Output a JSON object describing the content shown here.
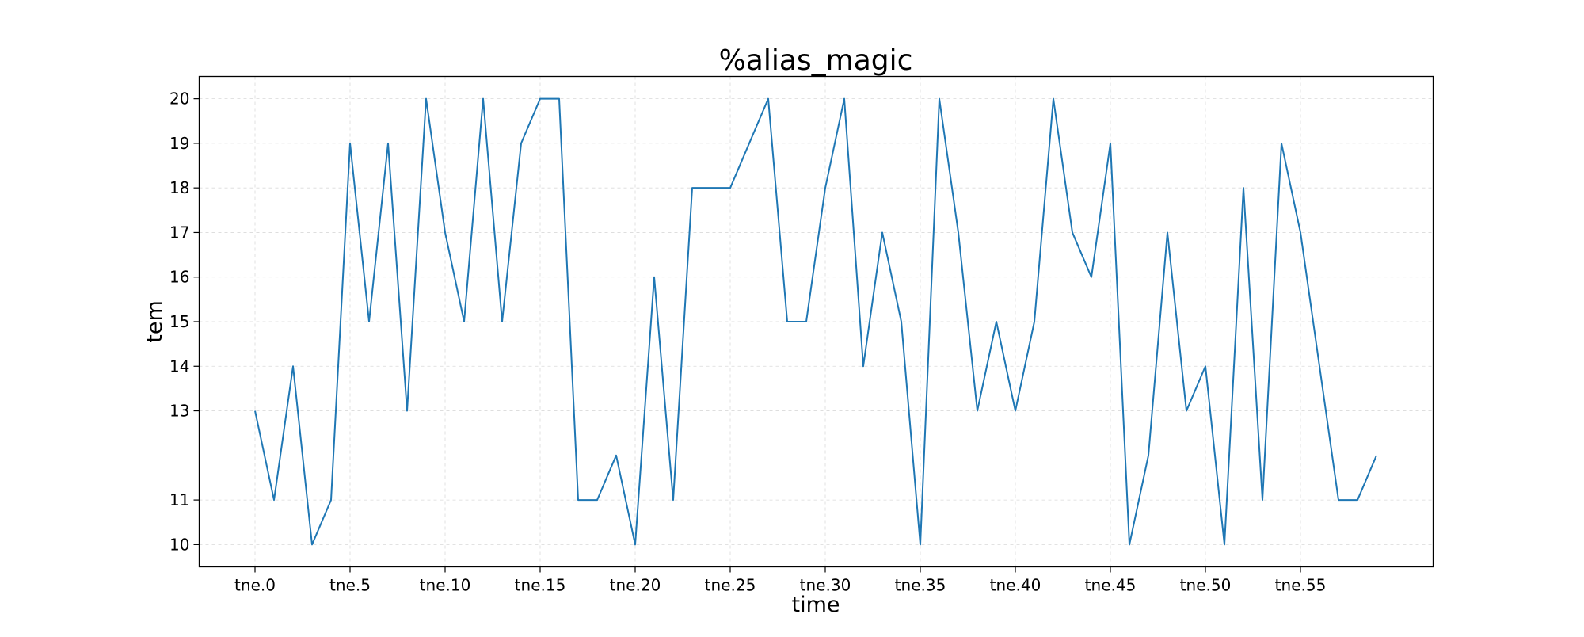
{
  "chart_data": {
    "type": "line",
    "title": "%alias_magic",
    "xlabel": "time",
    "ylabel": "tem",
    "x_tick_labels": [
      "tne.0",
      "tne.5",
      "tne.10",
      "tne.15",
      "tne.20",
      "tne.25",
      "tne.30",
      "tne.35",
      "tne.40",
      "tne.45",
      "tne.50",
      "tne.55"
    ],
    "y_tick_labels": [
      "10",
      "11",
      "13",
      "14",
      "15",
      "16",
      "17",
      "18",
      "19",
      "20"
    ],
    "ylim": [
      9.5,
      20.5
    ],
    "grid": true,
    "legend": "none",
    "colors": {
      "line": "#1f77b4",
      "grid": "#d9d9d9",
      "frame": "#000000"
    },
    "series": [
      {
        "values": [
          13,
          11,
          14,
          10,
          11,
          19,
          15,
          19,
          13,
          20,
          17,
          15,
          20,
          15,
          19,
          20,
          20,
          11,
          11,
          12,
          10,
          16,
          11,
          18,
          18,
          18,
          19,
          20,
          15,
          15,
          18,
          20,
          14,
          17,
          15,
          10,
          20,
          17,
          13,
          15,
          13,
          15,
          20,
          17,
          16,
          19,
          10,
          12,
          17,
          13,
          14,
          10,
          18,
          11,
          19,
          17,
          14,
          11,
          11,
          12
        ]
      }
    ]
  }
}
